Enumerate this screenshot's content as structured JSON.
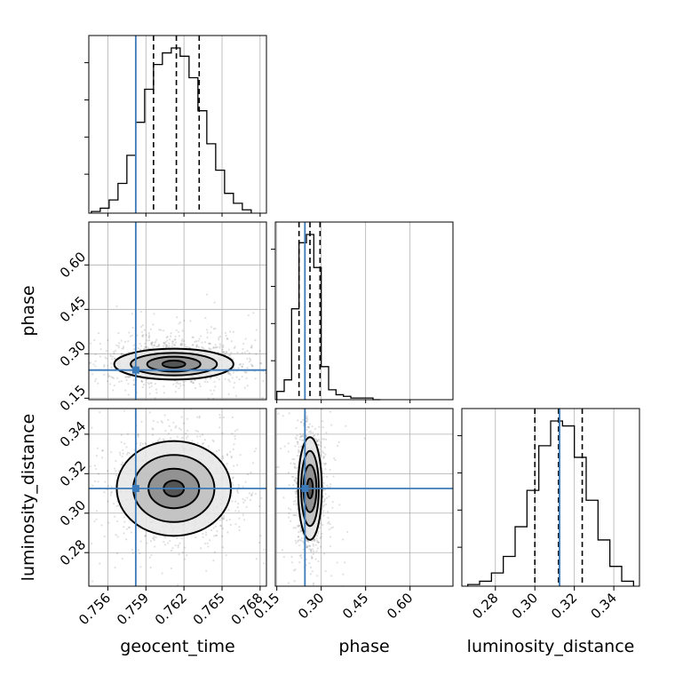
{
  "chart_data": {
    "type": "corner",
    "parameters": [
      "geocent_time",
      "phase",
      "luminosity_distance"
    ],
    "axis_labels": {
      "geocent_time": "geocent_time",
      "phase": "phase",
      "luminosity_distance": "luminosity_distance"
    },
    "ranges": {
      "geocent_time": [
        0.7545,
        0.7685
      ],
      "phase": [
        0.145,
        0.745
      ],
      "luminosity_distance": [
        0.263,
        0.353
      ]
    },
    "ticks": {
      "geocent_time": [
        {
          "value": 0.756,
          "label": "0.756"
        },
        {
          "value": 0.759,
          "label": "0.759"
        },
        {
          "value": 0.762,
          "label": "0.762"
        },
        {
          "value": 0.765,
          "label": "0.765"
        },
        {
          "value": 0.768,
          "label": "0.768"
        }
      ],
      "phase": [
        {
          "value": 0.15,
          "label": "0.15"
        },
        {
          "value": 0.3,
          "label": "0.30"
        },
        {
          "value": 0.45,
          "label": "0.45"
        },
        {
          "value": 0.6,
          "label": "0.60"
        }
      ],
      "luminosity_distance": [
        {
          "value": 0.28,
          "label": "0.28"
        },
        {
          "value": 0.3,
          "label": "0.30"
        },
        {
          "value": 0.32,
          "label": "0.32"
        },
        {
          "value": 0.34,
          "label": "0.34"
        }
      ]
    },
    "truths": {
      "geocent_time": 0.7582,
      "phase": 0.245,
      "luminosity_distance": 0.3125
    },
    "quantiles": {
      "geocent_time": [
        0.7596,
        0.7614,
        0.7632
      ],
      "phase": [
        0.225,
        0.262,
        0.296
      ],
      "luminosity_distance": [
        0.3,
        0.312,
        0.324
      ]
    },
    "histograms": {
      "geocent_time": {
        "edges": [
          0.7547,
          0.7554,
          0.7561,
          0.7568,
          0.7575,
          0.7582,
          0.7589,
          0.7596,
          0.7603,
          0.761,
          0.7617,
          0.7624,
          0.7631,
          0.7638,
          0.7645,
          0.7652,
          0.7659,
          0.7666,
          0.7673
        ],
        "counts": [
          0.01,
          0.03,
          0.08,
          0.18,
          0.35,
          0.55,
          0.75,
          0.9,
          0.97,
          1.0,
          0.95,
          0.82,
          0.62,
          0.42,
          0.26,
          0.12,
          0.06,
          0.02
        ]
      },
      "phase": {
        "edges": [
          0.15,
          0.175,
          0.2,
          0.225,
          0.25,
          0.275,
          0.3,
          0.325,
          0.35,
          0.375,
          0.4,
          0.425,
          0.45,
          0.475,
          0.5
        ],
        "counts": [
          0.05,
          0.12,
          0.55,
          0.95,
          1.0,
          0.8,
          0.2,
          0.06,
          0.03,
          0.02,
          0.01,
          0.01,
          0.01,
          0.0
        ]
      },
      "luminosity_distance": {
        "edges": [
          0.266,
          0.272,
          0.278,
          0.284,
          0.29,
          0.296,
          0.302,
          0.308,
          0.314,
          0.32,
          0.326,
          0.332,
          0.338,
          0.344,
          0.35
        ],
        "counts": [
          0.01,
          0.03,
          0.08,
          0.18,
          0.36,
          0.58,
          0.85,
          1.0,
          0.97,
          0.78,
          0.52,
          0.28,
          0.12,
          0.03
        ]
      }
    },
    "posterior_2d": {
      "phase_vs_geocent_time": {
        "center": [
          0.7612,
          0.265
        ],
        "contour_half_widths": [
          [
            0.0009,
            0.012
          ],
          [
            0.0021,
            0.025
          ],
          [
            0.0034,
            0.038
          ],
          [
            0.0047,
            0.052
          ]
        ]
      },
      "luminosity_distance_vs_geocent_time": {
        "center": [
          0.7612,
          0.3125
        ],
        "contour_half_widths": [
          [
            0.0008,
            0.004
          ],
          [
            0.002,
            0.01
          ],
          [
            0.0032,
            0.017
          ],
          [
            0.0045,
            0.024
          ]
        ]
      },
      "luminosity_distance_vs_phase": {
        "center": [
          0.262,
          0.3125
        ],
        "contour_half_widths": [
          [
            0.01,
            0.005
          ],
          [
            0.022,
            0.012
          ],
          [
            0.03,
            0.019
          ],
          [
            0.04,
            0.026
          ]
        ]
      }
    },
    "grid": true
  }
}
